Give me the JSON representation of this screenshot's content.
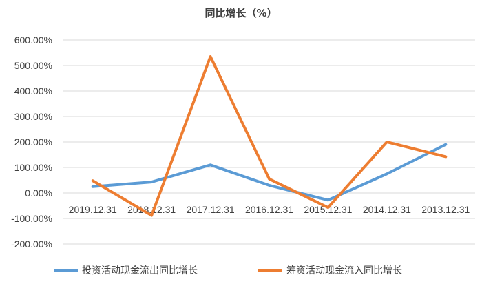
{
  "chart_data": {
    "type": "line",
    "title": "同比增长（%）",
    "xlabel": "",
    "ylabel": "",
    "categories": [
      "2019.12.31",
      "2018.12.31",
      "2017.12.31",
      "2016.12.31",
      "2015.12.31",
      "2014.12.31",
      "2013.12.31"
    ],
    "y_ticks": [
      "600.00%",
      "500.00%",
      "400.00%",
      "300.00%",
      "200.00%",
      "100.00%",
      "0.00%",
      "-100.00%",
      "-200.00%"
    ],
    "ylim": [
      -200,
      600
    ],
    "grid": true,
    "legend": "bottom",
    "series": [
      {
        "name": "投资活动现金流出同比增长",
        "color": "#5B9BD5",
        "values": [
          25,
          43,
          110,
          30,
          -28,
          75,
          190
        ]
      },
      {
        "name": "筹资活动现金流入同比增长",
        "color": "#ED7D31",
        "values": [
          48,
          -88,
          535,
          55,
          -57,
          200,
          142
        ]
      }
    ]
  }
}
